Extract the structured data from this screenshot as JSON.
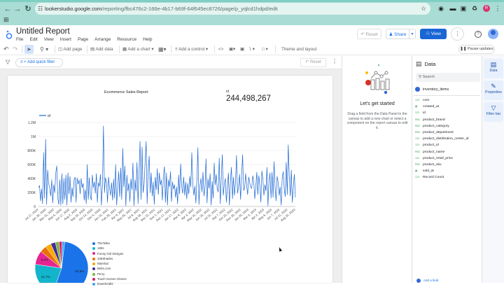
{
  "browser": {
    "url_host": "lookerstudio.google.com",
    "url_path": "/reporting/fbc476c2-166e-4b17-b69f-64f645ec8726/page/p_yqlcd1hdpd/edit",
    "icons": [
      "back-icon",
      "forward-icon",
      "reload-icon",
      "site-info-icon",
      "bookmark-star-icon",
      "extension-icons",
      "profile-icon",
      "more-icon",
      "apps-grid-icon"
    ],
    "profile_initial": "R"
  },
  "app": {
    "title": "Untitled Report",
    "menus": [
      "File",
      "Edit",
      "View",
      "Insert",
      "Page",
      "Arrange",
      "Resource",
      "Help"
    ],
    "reset_label": "Reset",
    "share_label": "Share",
    "view_label": "View"
  },
  "toolbar": {
    "add_page": "Add page",
    "add_data": "Add data",
    "add_chart": "Add a chart",
    "add_control": "Add a control",
    "theme_layout": "Theme and layout",
    "pause_updates": "Pause updates"
  },
  "filterbar": {
    "add_quick_filter": "+ Add quick filter",
    "reset_label": "Reset"
  },
  "report": {
    "title": "Ecommerce Sales Report",
    "scorecard": {
      "label": "id",
      "value": "244,498,267"
    }
  },
  "chart_data": [
    {
      "type": "line",
      "title": "",
      "legend": [
        "id"
      ],
      "legend_position": "top-left",
      "xlabel": "",
      "ylabel": "",
      "ylim": [
        0,
        1200000
      ],
      "yticks": [
        "0",
        "200K",
        "400K",
        "600K",
        "800K",
        "1M",
        "1.2M"
      ],
      "grid": true,
      "color": "#1a66d4",
      "x_tick_labels": [
        "Jul 27, 2019",
        "Jan 30, 2020",
        "Mar 15, 2020",
        "May 6, 2020",
        "Jun 17, 2020",
        "Aug 2, 2020",
        "Sep 20, 2020",
        "Oct 14, 2020",
        "Dec 5, 2020",
        "Jan 15, 2021",
        "Feb 26, 2021",
        "Apr 9, 2021",
        "May 26, 2021",
        "Jul 8, 2021",
        "Aug 18, 2021",
        "Sep 22, 2021",
        "Nov 2, 2021",
        "Dec 17, 2021",
        "Jan 17, 2022",
        "Mar 8, 2022",
        "Apr 3, 2022",
        "May 15, 2022",
        "Jun 23, 2022",
        "Jul 31, 2022",
        "Sep 7, 2022",
        "Oct 23, 2022",
        "Dec 20, 2022",
        "Jan 25, 2023",
        "Mar 3, 2023",
        "Apr 2, 2023",
        "May 6, 2023",
        "Jun 7, 2023",
        "Jul 11, 2023",
        "Aug 20, 2023"
      ],
      "series": [
        {
          "name": "id",
          "values": [
            270000,
            300000,
            80000,
            250000,
            40000,
            770000,
            120000,
            960000,
            30000,
            520000,
            330000,
            260000,
            150000,
            380000,
            50000,
            310000,
            200000,
            480000,
            580000,
            120000,
            30000,
            380000,
            20000,
            470000,
            40000,
            400000,
            100000,
            450000,
            20000,
            480000,
            180000,
            430000,
            60000,
            270000,
            140000,
            380000,
            420000,
            60000,
            410000,
            320000,
            380000,
            180000,
            400000,
            270000,
            330000,
            90000,
            240000,
            40000,
            600000,
            100000,
            410000,
            150000,
            90000,
            450000,
            270000,
            350000,
            190000,
            470000,
            60000,
            340000,
            290000,
            460000,
            20000,
            320000,
            1150000,
            200000,
            410000,
            340000,
            60000,
            420000,
            260000,
            160000,
            340000,
            90000,
            390000,
            120000,
            600000,
            20000,
            270000,
            500000,
            140000,
            550000,
            100000,
            830000,
            280000,
            580000,
            10000,
            450000,
            220000,
            330000,
            70000,
            390000,
            240000,
            620000,
            10000,
            380000,
            220000,
            630000,
            40000,
            490000,
            930000,
            100000,
            850000,
            200000,
            320000,
            630000,
            930000,
            40000,
            520000,
            720000,
            200000,
            480000,
            150000,
            350000,
            30000,
            420000,
            240000,
            540000,
            170000,
            480000,
            310000,
            380000,
            90000,
            420000,
            570000,
            60000,
            480000,
            20000,
            380000,
            280000,
            500000,
            70000,
            350000,
            250000,
            310000,
            130000,
            280000,
            40000,
            450000,
            180000,
            610000,
            290000,
            190000,
            420000,
            160000,
            350000,
            110000,
            330000,
            180000,
            430000,
            280000,
            770000,
            310000,
            160000,
            290000,
            50000,
            390000,
            840000,
            30000,
            300000,
            400000,
            210000,
            490000,
            150000,
            280000,
            680000,
            50000,
            390000,
            260000,
            470000,
            20000,
            360000,
            120000,
            620000,
            310000,
            460000,
            250000,
            210000,
            690000,
            40000,
            390000,
            740000,
            160000,
            320000,
            400000,
            60000,
            270000,
            480000,
            20000,
            350000,
            560000,
            110000,
            420000,
            160000,
            340000,
            730000,
            190000,
            280000,
            460000,
            100000,
            430000,
            740000,
            230000,
            260000,
            470000,
            300000,
            170000,
            420000,
            340000,
            270000,
            260000,
            440000,
            360000,
            110000,
            280000,
            490000,
            170000,
            440000,
            300000,
            60000,
            510000,
            390000,
            160000,
            310000,
            220000,
            560000,
            10000,
            360000,
            480000,
            120000,
            490000,
            130000,
            640000,
            270000,
            80000,
            430000,
            350000,
            160000,
            280000,
            20000,
            390000,
            500000,
            260000,
            140000,
            630000,
            170000,
            880000,
            420000,
            150000,
            520000,
            60000,
            280000,
            460000,
            130000
          ]
        }
      ]
    },
    {
      "type": "pie",
      "categories": [
        "TheTellar",
        "180s",
        "Funny Girl Designs",
        "106Shades",
        "Marshal",
        "Belts.com",
        "Perry",
        "Touch Screen Gloves",
        "boxerlcraftz"
      ],
      "values": [
        52.9,
        21.7,
        8.4,
        4.0,
        3.5,
        2.8,
        2.3,
        1.8,
        1.6
      ],
      "labels_shown": [
        "52.9%",
        "21.7%",
        "8.4%"
      ],
      "colors": [
        "#1a73e8",
        "#12b5cb",
        "#e52592",
        "#e8710a",
        "#f9ab00",
        "#3d2c9a",
        "#7cb342",
        "#d81b60",
        "#42a5f5"
      ],
      "legend_position": "right"
    }
  ],
  "getting_started": {
    "title": "Let's get started",
    "text": "Drag a field from the Data Panel to the canvas to add a new chart or select a component on the report canvas to edit it."
  },
  "data_panel": {
    "title": "Data",
    "search_placeholder": "Search",
    "source": "inventory_items",
    "fields": [
      {
        "type": "123",
        "name": "cost"
      },
      {
        "type": "date",
        "name": "created_at"
      },
      {
        "type": "123",
        "name": "id"
      },
      {
        "type": "RBC",
        "name": "product_brand"
      },
      {
        "type": "RBC",
        "name": "product_category"
      },
      {
        "type": "RBC",
        "name": "product_department"
      },
      {
        "type": "123",
        "name": "product_distribution_center_id"
      },
      {
        "type": "123",
        "name": "product_id"
      },
      {
        "type": "RBC",
        "name": "product_name"
      },
      {
        "type": "123",
        "name": "product_retail_price"
      },
      {
        "type": "RBC",
        "name": "product_sku"
      },
      {
        "type": "date",
        "name": "sold_at"
      },
      {
        "type": "123",
        "name": "Record Count"
      }
    ],
    "add_field": "Add a field"
  },
  "right_rail": {
    "items": [
      {
        "label": "Data",
        "icon": "data-icon"
      },
      {
        "label": "Properties",
        "icon": "pencil-icon"
      },
      {
        "label": "Filter bar",
        "icon": "filter-icon"
      }
    ]
  }
}
